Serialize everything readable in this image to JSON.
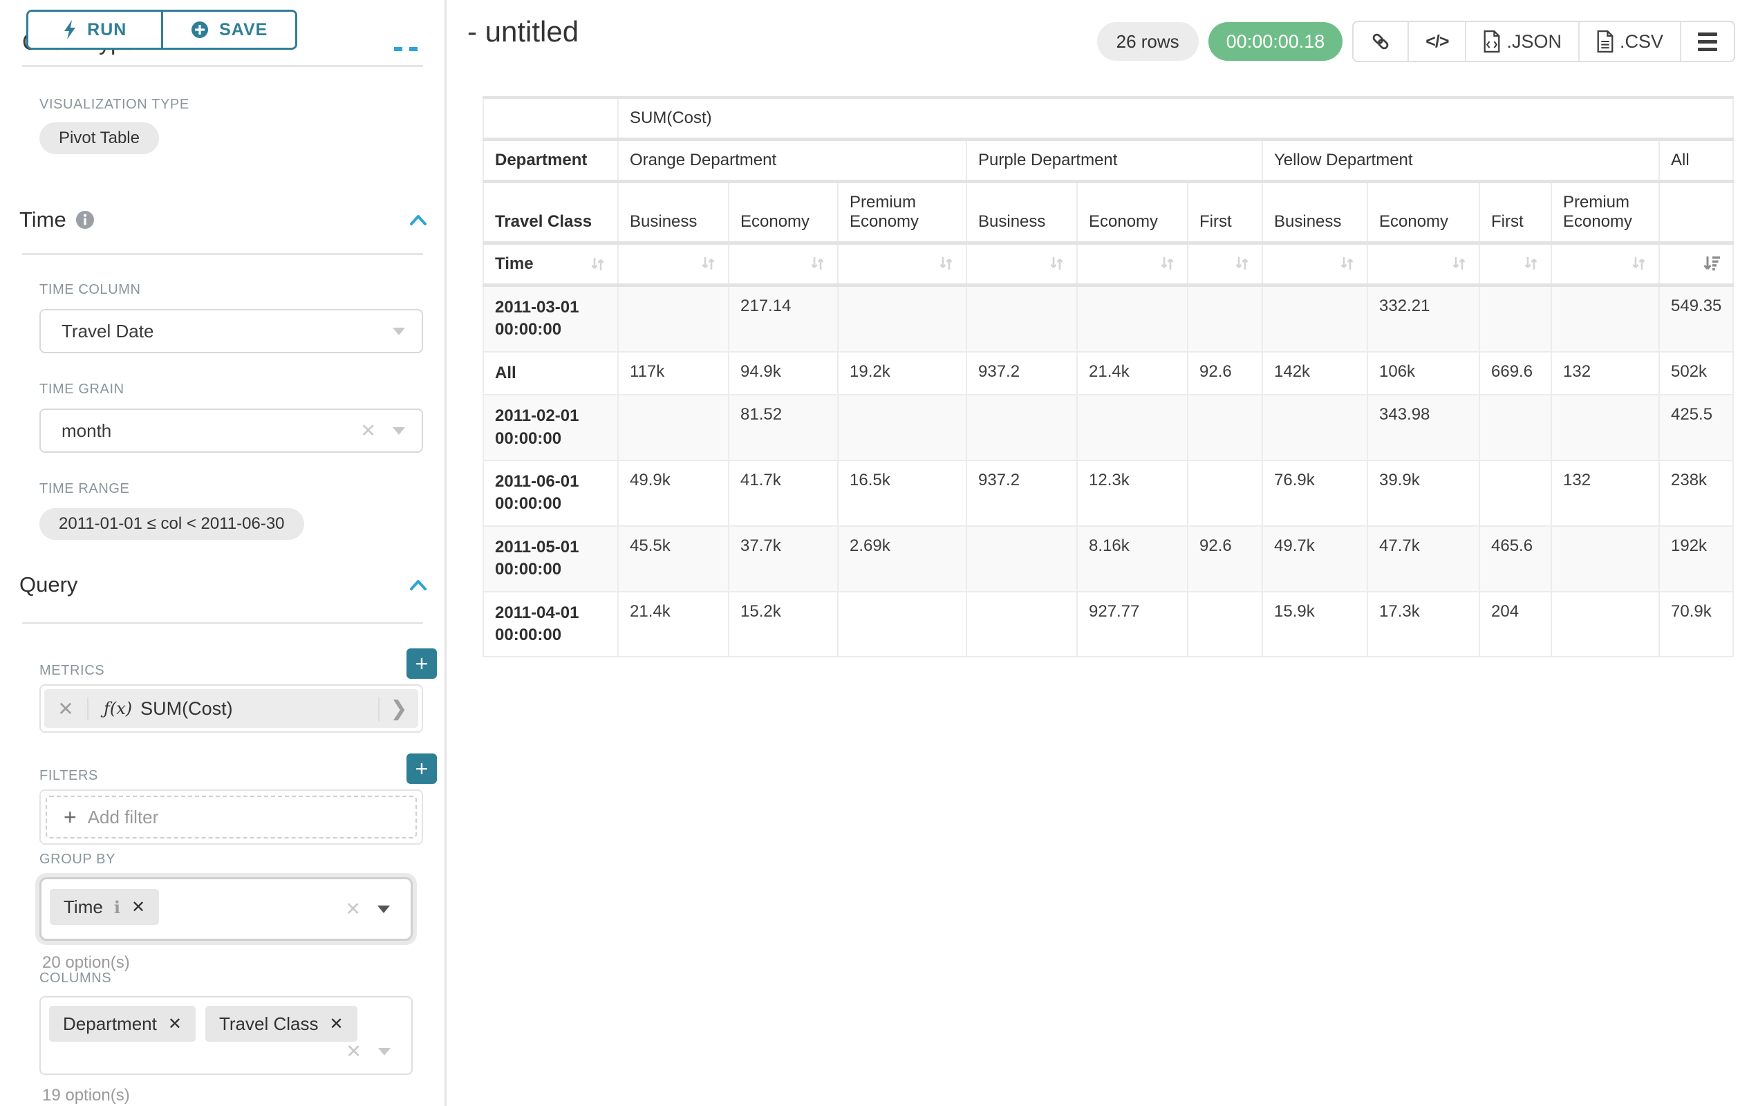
{
  "colors": {
    "accent_teal": "#2e7f96",
    "section_chevron_blue": "#2ea4d8",
    "timer_green": "#6fbd88",
    "pill_gray": "#e9e9e9",
    "table_stripe": "#f9f9f9",
    "table_border": "#ececec"
  },
  "toolbar": {
    "run_label": "RUN",
    "save_label": "SAVE"
  },
  "sidebar": {
    "chart_type_title": "Chart Type",
    "viz": {
      "label": "VISUALIZATION TYPE",
      "value": "Pivot Table"
    },
    "time": {
      "title": "Time",
      "time_column_label": "TIME COLUMN",
      "time_column_value": "Travel Date",
      "time_grain_label": "TIME GRAIN",
      "time_grain_value": "month",
      "time_range_label": "TIME RANGE",
      "time_range_value": "2011-01-01 ≤ col < 2011-06-30"
    },
    "query": {
      "title": "Query",
      "metrics_label": "METRICS",
      "metric_fx": "ƒ(x)",
      "metric_name": "SUM(Cost)",
      "filters_label": "FILTERS",
      "add_filter_label": "Add filter",
      "group_by_label": "GROUP BY",
      "group_by_items": [
        "Time"
      ],
      "group_by_hint": "20 option(s)",
      "columns_label": "COLUMNS",
      "columns_items": [
        "Department",
        "Travel Class"
      ],
      "columns_hint": "19 option(s)"
    }
  },
  "header": {
    "title": "- untitled",
    "row_count": "26 rows",
    "timer": "00:00:00.18",
    "export_json_label": ".JSON",
    "export_csv_label": ".CSV",
    "code_glyph": "</>"
  },
  "icons": {
    "run": "lightning-icon",
    "save": "plus-circle-icon",
    "info": "info-icon",
    "collapse": "chevron-up-icon",
    "clear": "✕",
    "caret": "caret-down-icon",
    "link": "link-icon",
    "embed": "code-icon",
    "menu": "hamburger-icon",
    "sort_inactive": "sort-arrows-icon",
    "sort_active": "sort-desc-icon"
  },
  "pivot_table": {
    "metric_header": "SUM(Cost)",
    "corner": {
      "department": "Department",
      "travel_class": "Travel Class",
      "time": "Time"
    },
    "groups": [
      {
        "label": "Orange Department",
        "cols": [
          "Business",
          "Economy",
          "Premium Economy"
        ]
      },
      {
        "label": "Purple Department",
        "cols": [
          "Business",
          "Economy",
          "First"
        ]
      },
      {
        "label": "Yellow Department",
        "cols": [
          "Business",
          "Economy",
          "First",
          "Premium Economy"
        ]
      },
      {
        "label": "All",
        "cols": [
          ""
        ]
      }
    ],
    "sort": {
      "active_column_index": 10,
      "direction": "desc"
    },
    "rows": [
      {
        "label": "2011-03-01 00:00:00",
        "values": [
          "",
          "217.14",
          "",
          "",
          "",
          "",
          "",
          "332.21",
          "",
          "",
          "549.35"
        ]
      },
      {
        "label": "All",
        "values": [
          "117k",
          "94.9k",
          "19.2k",
          "937.2",
          "21.4k",
          "92.6",
          "142k",
          "106k",
          "669.6",
          "132",
          "502k"
        ]
      },
      {
        "label": "2011-02-01 00:00:00",
        "values": [
          "",
          "81.52",
          "",
          "",
          "",
          "",
          "",
          "343.98",
          "",
          "",
          "425.5"
        ]
      },
      {
        "label": "2011-06-01 00:00:00",
        "values": [
          "49.9k",
          "41.7k",
          "16.5k",
          "937.2",
          "12.3k",
          "",
          "76.9k",
          "39.9k",
          "",
          "132",
          "238k"
        ]
      },
      {
        "label": "2011-05-01 00:00:00",
        "values": [
          "45.5k",
          "37.7k",
          "2.69k",
          "",
          "8.16k",
          "92.6",
          "49.7k",
          "47.7k",
          "465.6",
          "",
          "192k"
        ]
      },
      {
        "label": "2011-04-01 00:00:00",
        "values": [
          "21.4k",
          "15.2k",
          "",
          "",
          "927.77",
          "",
          "15.9k",
          "17.3k",
          "204",
          "",
          "70.9k"
        ]
      }
    ]
  }
}
